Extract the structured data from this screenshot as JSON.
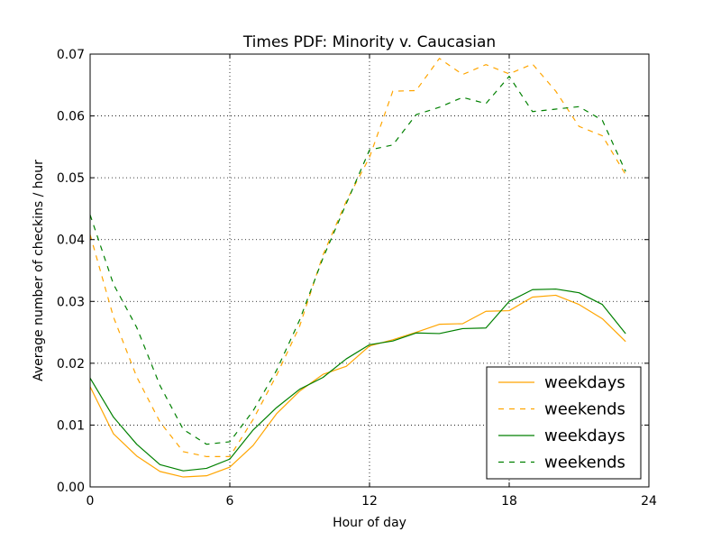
{
  "chart_data": {
    "type": "line",
    "title": "Times PDF: Minority v. Caucasian",
    "xlabel": "Hour of day",
    "ylabel": "Average number of checkins / hour",
    "xlim": [
      0,
      24
    ],
    "ylim": [
      0,
      0.07
    ],
    "xticks": [
      0,
      6,
      12,
      18,
      24
    ],
    "yticks": [
      0.0,
      0.01,
      0.02,
      0.03,
      0.04,
      0.05,
      0.06,
      0.07
    ],
    "xtick_labels": [
      "0",
      "6",
      "12",
      "18",
      "24"
    ],
    "ytick_labels": [
      "0.00",
      "0.01",
      "0.02",
      "0.03",
      "0.04",
      "0.05",
      "0.06",
      "0.07"
    ],
    "grid": true,
    "legend_position": "lower right",
    "x": [
      0,
      1,
      2,
      3,
      4,
      5,
      6,
      7,
      8,
      9,
      10,
      11,
      12,
      13,
      14,
      15,
      16,
      17,
      18,
      19,
      20,
      21,
      22,
      23
    ],
    "series": [
      {
        "name": "weekdays",
        "color": "#FFA500",
        "dash": "solid",
        "values": [
          0.0162,
          0.0086,
          0.005,
          0.0025,
          0.0016,
          0.0018,
          0.0032,
          0.0067,
          0.0118,
          0.0155,
          0.0182,
          0.0195,
          0.0228,
          0.0238,
          0.025,
          0.0263,
          0.0264,
          0.0284,
          0.0285,
          0.0307,
          0.031,
          0.0295,
          0.0272,
          0.0235
        ]
      },
      {
        "name": "weekends",
        "color": "#FFA500",
        "dash": "dashed",
        "values": [
          0.0408,
          0.0275,
          0.0178,
          0.0105,
          0.0057,
          0.0049,
          0.0049,
          0.0109,
          0.018,
          0.026,
          0.0375,
          0.0462,
          0.0533,
          0.064,
          0.0641,
          0.0693,
          0.0667,
          0.0683,
          0.0668,
          0.0684,
          0.064,
          0.0583,
          0.0568,
          0.0505
        ]
      },
      {
        "name": "weekdays",
        "color": "#008000",
        "dash": "solid",
        "values": [
          0.0176,
          0.0113,
          0.0069,
          0.0036,
          0.0026,
          0.003,
          0.0045,
          0.0092,
          0.0128,
          0.0158,
          0.0177,
          0.0207,
          0.023,
          0.0236,
          0.0249,
          0.0248,
          0.0256,
          0.0257,
          0.03,
          0.0319,
          0.032,
          0.0314,
          0.0295,
          0.0248
        ]
      },
      {
        "name": "weekends",
        "color": "#008000",
        "dash": "dashed",
        "values": [
          0.044,
          0.0328,
          0.0258,
          0.0164,
          0.0093,
          0.0069,
          0.0073,
          0.0123,
          0.0188,
          0.027,
          0.037,
          0.0458,
          0.0545,
          0.0553,
          0.0602,
          0.0614,
          0.063,
          0.062,
          0.0664,
          0.0607,
          0.0611,
          0.0615,
          0.0593,
          0.051
        ]
      }
    ]
  }
}
